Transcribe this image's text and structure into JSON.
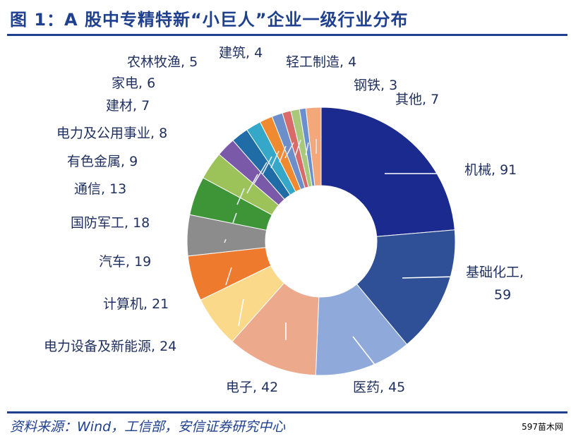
{
  "title": "图 1：A 股中专精特新“小巨人”企业一级行业分布",
  "source": "资料来源：Wind，工信部，安信证券研究中心",
  "watermark": "597苗木网",
  "chart_data": {
    "type": "pie",
    "donut": true,
    "title": "图 1：A 股中专精特新“小巨人”企业一级行业分布",
    "slices": [
      {
        "name": "机械",
        "value": 91,
        "color": "#1b2a8f",
        "label": "机械, 91"
      },
      {
        "name": "基础化工",
        "value": 59,
        "color": "#2f4f97",
        "label": "基础化工,\n59"
      },
      {
        "name": "医药",
        "value": 45,
        "color": "#8fa9da",
        "label": "医药, 45"
      },
      {
        "name": "电子",
        "value": 42,
        "color": "#eda98c",
        "label": "电子, 42"
      },
      {
        "name": "电力设备及新能源",
        "value": 24,
        "color": "#fbd98a",
        "label": "电力设备及新能源, 24"
      },
      {
        "name": "计算机",
        "value": 21,
        "color": "#ee7b2d",
        "label": "计算机, 21"
      },
      {
        "name": "汽车",
        "value": 19,
        "color": "#8c8c8c",
        "label": "汽车, 19"
      },
      {
        "name": "国防军工",
        "value": 18,
        "color": "#3e9538",
        "label": "国防军工, 18"
      },
      {
        "name": "通信",
        "value": 13,
        "color": "#9bc35a",
        "label": "通信, 13"
      },
      {
        "name": "有色金属",
        "value": 9,
        "color": "#7a5aa8",
        "label": "有色金属, 9"
      },
      {
        "name": "电力及公用事业",
        "value": 8,
        "color": "#1f6ca6",
        "label": "电力及公用事业, 8"
      },
      {
        "name": "建材",
        "value": 7,
        "color": "#35a8c9",
        "label": "建材, 7"
      },
      {
        "name": "家电",
        "value": 6,
        "color": "#ef8a30",
        "label": "家电, 6"
      },
      {
        "name": "农林牧渔",
        "value": 5,
        "color": "#6d8fc9",
        "label": "农林牧渔, 5"
      },
      {
        "name": "建筑",
        "value": 4,
        "color": "#d96a6a",
        "label": "建筑, 4"
      },
      {
        "name": "轻工制造",
        "value": 4,
        "color": "#a8c97a",
        "label": "轻工制造, 4"
      },
      {
        "name": "钢铁",
        "value": 3,
        "color": "#6a8fd0",
        "label": "钢铁, 3"
      },
      {
        "name": "其他",
        "value": 7,
        "color": "#f3a77a",
        "label": "其他, 7"
      }
    ]
  }
}
